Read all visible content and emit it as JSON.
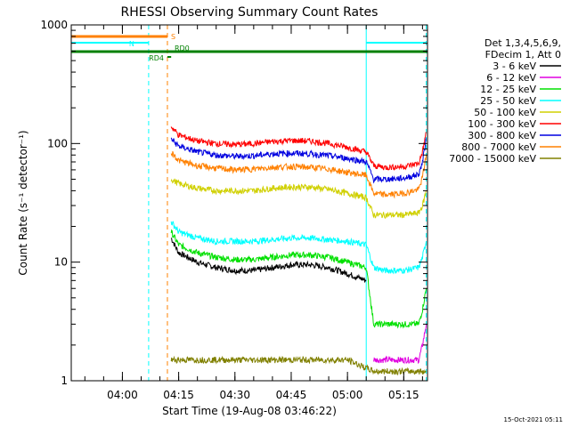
{
  "chart_data": {
    "type": "line",
    "title": "RHESSI Observing Summary Count Rates",
    "xlabel": "Start Time (19-Aug-08 03:46:22)",
    "ylabel": "Count Rate (s⁻¹ detector⁻¹)",
    "yscale": "log",
    "ylim": [
      1,
      1000
    ],
    "xlim": [
      "03:46:22",
      "05:21:20"
    ],
    "x_ticks": [
      "04:00",
      "04:15",
      "04:30",
      "04:45",
      "05:00",
      "05:15"
    ],
    "y_ticks": [
      "1",
      "10",
      "100",
      "1000"
    ],
    "legend": {
      "placement": "right",
      "header": [
        "Det 1,3,4,5,6,9,",
        "FDecim 1, Att 0"
      ]
    },
    "series": [
      {
        "name": "3 - 6 keV",
        "color": "#000000",
        "x": [
          "04:13",
          "04:15",
          "04:20",
          "04:25",
          "04:30",
          "04:35",
          "04:40",
          "04:45",
          "04:50",
          "04:55",
          "05:00",
          "05:05"
        ],
        "values": [
          16,
          12,
          10,
          9,
          8.5,
          8.5,
          9,
          9.5,
          9.5,
          9,
          8,
          7
        ]
      },
      {
        "name": "6 - 12 keV",
        "color": "#e000e0",
        "x": [
          "05:07",
          "05:10",
          "05:15",
          "05:19",
          "05:20",
          "05:21"
        ],
        "values": [
          1.5,
          1.5,
          1.5,
          1.5,
          2,
          3
        ]
      },
      {
        "name": "12 - 25 keV",
        "color": "#00e000",
        "x": [
          "04:13",
          "04:15",
          "04:20",
          "04:25",
          "04:30",
          "04:35",
          "04:40",
          "04:45",
          "04:50",
          "04:55",
          "05:00",
          "05:05",
          "05:07",
          "05:10",
          "05:15",
          "05:19",
          "05:20",
          "05:21"
        ],
        "values": [
          18,
          14,
          12,
          11,
          10.5,
          10.5,
          11,
          11.5,
          11.5,
          11,
          10,
          9,
          3,
          3,
          3,
          3,
          4,
          6
        ]
      },
      {
        "name": "25 - 50 keV",
        "color": "#00ffff",
        "x": [
          "04:13",
          "04:15",
          "04:20",
          "04:25",
          "04:30",
          "04:35",
          "04:40",
          "04:45",
          "04:50",
          "04:55",
          "05:00",
          "05:05",
          "05:07",
          "05:10",
          "05:15",
          "05:19",
          "05:20",
          "05:21"
        ],
        "values": [
          22,
          18,
          16,
          15,
          15,
          15,
          15.5,
          16,
          16,
          15.5,
          15,
          14,
          9,
          8.5,
          8.5,
          9,
          11,
          15
        ]
      },
      {
        "name": "50 - 100 keV",
        "color": "#d0d000",
        "x": [
          "04:13",
          "04:15",
          "04:20",
          "04:25",
          "04:30",
          "04:35",
          "04:40",
          "04:45",
          "04:50",
          "04:55",
          "05:00",
          "05:05",
          "05:07",
          "05:10",
          "05:15",
          "05:19",
          "05:20",
          "05:21"
        ],
        "values": [
          50,
          46,
          42,
          40,
          40,
          40,
          42,
          43,
          43,
          41,
          38,
          35,
          25,
          25,
          25,
          26,
          30,
          40
        ]
      },
      {
        "name": "100 - 300 keV",
        "color": "#ff0000",
        "x": [
          "04:13",
          "04:15",
          "04:20",
          "04:25",
          "04:30",
          "04:35",
          "04:40",
          "04:45",
          "04:50",
          "04:55",
          "05:00",
          "05:05",
          "05:07",
          "05:10",
          "05:15",
          "05:19",
          "05:20",
          "05:21"
        ],
        "values": [
          140,
          118,
          105,
          100,
          98,
          100,
          104,
          106,
          105,
          100,
          93,
          85,
          65,
          63,
          64,
          68,
          85,
          125
        ]
      },
      {
        "name": "300 - 800 keV",
        "color": "#0000e0",
        "x": [
          "04:13",
          "04:15",
          "04:20",
          "04:25",
          "04:30",
          "04:35",
          "04:40",
          "04:45",
          "04:50",
          "04:55",
          "05:00",
          "05:05",
          "05:07",
          "05:10",
          "05:15",
          "05:19",
          "05:20",
          "05:21"
        ],
        "values": [
          110,
          95,
          85,
          80,
          78,
          79,
          82,
          83,
          82,
          79,
          75,
          70,
          50,
          50,
          51,
          55,
          70,
          110
        ]
      },
      {
        "name": "800 - 7000 keV",
        "color": "#ff8000",
        "x": [
          "04:13",
          "04:15",
          "04:20",
          "04:25",
          "04:30",
          "04:35",
          "04:40",
          "04:45",
          "04:50",
          "04:55",
          "05:00",
          "05:05",
          "05:07",
          "05:10",
          "05:15",
          "05:19",
          "05:20",
          "05:21"
        ],
        "values": [
          85,
          72,
          65,
          62,
          60,
          61,
          63,
          64,
          63,
          61,
          57,
          54,
          38,
          37,
          38,
          41,
          52,
          80
        ]
      },
      {
        "name": "7000 - 15000 keV",
        "color": "#808000",
        "x": [
          "04:13",
          "04:20",
          "04:30",
          "04:40",
          "04:50",
          "05:00",
          "05:07",
          "05:15",
          "05:21"
        ],
        "values": [
          1.5,
          1.5,
          1.5,
          1.5,
          1.5,
          1.5,
          1.2,
          1.2,
          1.2
        ]
      }
    ],
    "flags": [
      {
        "label": "S",
        "color": "#ff8000",
        "x_start": "03:46:22",
        "x_end": "04:12"
      },
      {
        "label": "N",
        "color": "#00ffff",
        "x_start": "03:46:22",
        "x_end": "04:07"
      },
      {
        "label": "",
        "color": "#00ffff",
        "x_start": "05:05",
        "x_end": "05:21"
      },
      {
        "label": "RD4",
        "color": "#008000",
        "x_start": "04:12",
        "x_end": "04:13"
      },
      {
        "label": "RD0",
        "color": "#008000",
        "x_start": "03:46:22",
        "x_end": "05:21:20"
      }
    ],
    "vertical_markers": [
      {
        "x": "03:46:22",
        "color": "#00ffff",
        "style": "solid"
      },
      {
        "x": "04:07",
        "color": "#00ffff",
        "style": "dashed"
      },
      {
        "x": "04:12",
        "color": "#ff8000",
        "style": "dashed"
      },
      {
        "x": "05:05",
        "color": "#00ffff",
        "style": "solid"
      },
      {
        "x": "05:21",
        "color": "#00ffff",
        "style": "dashed"
      }
    ],
    "footer": "15-Oct-2021 05:11"
  }
}
